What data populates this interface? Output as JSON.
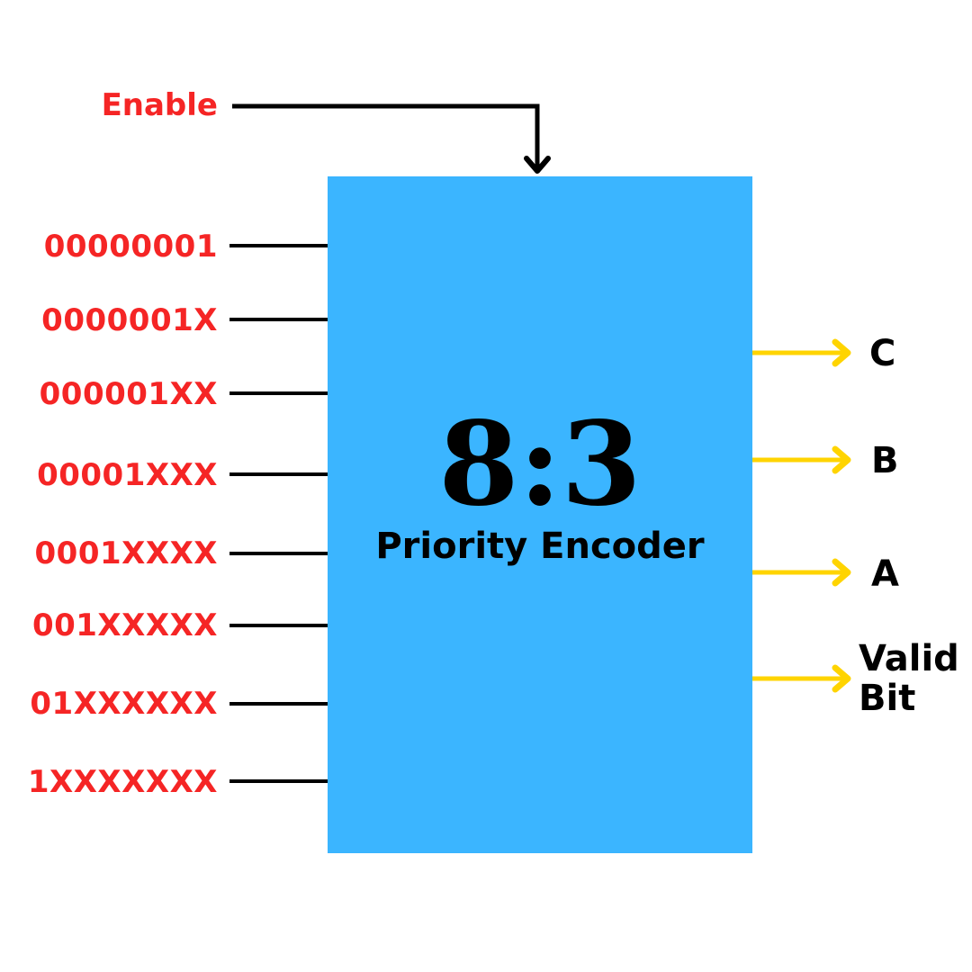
{
  "colors": {
    "input_label": "#f52525",
    "block_fill": "#3bb5ff",
    "output_arrow": "#ffd400",
    "wire": "#000000",
    "text": "#000000"
  },
  "enable": {
    "label": "Enable"
  },
  "block": {
    "ratio": "8:3",
    "title": "Priority Encoder"
  },
  "inputs": [
    {
      "label": "00000001"
    },
    {
      "label": "0000001X"
    },
    {
      "label": "000001XX"
    },
    {
      "label": "00001XXX"
    },
    {
      "label": "0001XXXX"
    },
    {
      "label": "001XXXXX"
    },
    {
      "label": "01XXXXXX"
    },
    {
      "label": "1XXXXXXX"
    }
  ],
  "outputs": [
    {
      "label": "C"
    },
    {
      "label": "B"
    },
    {
      "label": "A"
    },
    {
      "label_line1": "Valid",
      "label_line2": "Bit"
    }
  ]
}
